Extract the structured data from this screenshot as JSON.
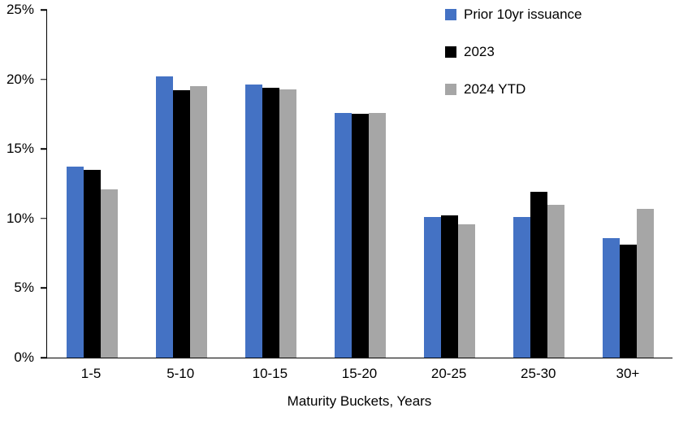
{
  "chart_data": {
    "type": "bar",
    "title": "",
    "xlabel": "Maturity Buckets, Years",
    "ylabel": "",
    "ylim": [
      0,
      25
    ],
    "yticks": [
      0,
      5,
      10,
      15,
      20,
      25
    ],
    "ytick_labels": [
      "0%",
      "5%",
      "10%",
      "15%",
      "20%",
      "25%"
    ],
    "grid": false,
    "legend_position": "top-right",
    "categories": [
      "1-5",
      "5-10",
      "10-15",
      "15-20",
      "20-25",
      "25-30",
      "30+"
    ],
    "series": [
      {
        "name": "Prior 10yr issuance",
        "color": "#4472C4",
        "values": [
          13.7,
          20.2,
          19.6,
          17.6,
          10.1,
          10.1,
          8.6
        ]
      },
      {
        "name": "2023",
        "color": "#000000",
        "values": [
          13.5,
          19.2,
          19.4,
          17.5,
          10.2,
          11.9,
          8.1
        ]
      },
      {
        "name": "2024 YTD",
        "color": "#A6A6A6",
        "values": [
          12.1,
          19.5,
          19.3,
          17.6,
          9.6,
          11.0,
          10.7
        ]
      }
    ]
  }
}
